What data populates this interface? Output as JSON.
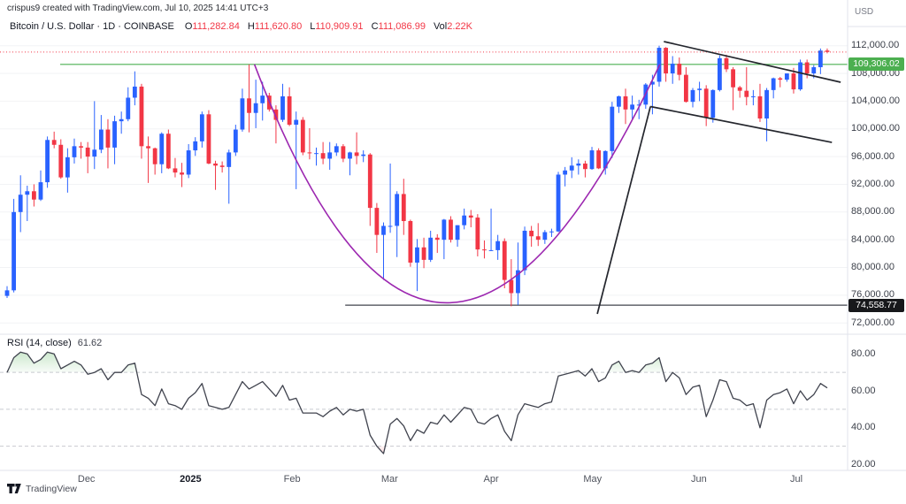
{
  "watermark": "crispus9 created with TradingView.com, Jul 10, 2025 14:41 UTC+3",
  "legend": {
    "title": "Bitcoin / U.S. Dollar · 1D · COINBASE",
    "o_label": "O",
    "o": "111,282.84",
    "h_label": "H",
    "h": "111,620.80",
    "l_label": "L",
    "l": "110,909.91",
    "c_label": "C",
    "c": "111,086.99",
    "vol_label": "Vol",
    "vol": "2.22K"
  },
  "rsi_legend": {
    "title": "RSI (14, close)",
    "value": "61.62"
  },
  "price_scale": {
    "unit": "USD",
    "ticks": [
      {
        "value": 112000,
        "label": "112,000.00"
      },
      {
        "value": 108000,
        "label": "108,000.00"
      },
      {
        "value": 104000,
        "label": "104,000.00"
      },
      {
        "value": 100000,
        "label": "100,000.00"
      },
      {
        "value": 96000,
        "label": "96,000.00"
      },
      {
        "value": 92000,
        "label": "92,000.00"
      },
      {
        "value": 88000,
        "label": "88,000.00"
      },
      {
        "value": 84000,
        "label": "84,000.00"
      },
      {
        "value": 80000,
        "label": "80,000.00"
      },
      {
        "value": 76000,
        "label": "76,000.00"
      },
      {
        "value": 72000,
        "label": "72,000.00"
      }
    ],
    "green_label": {
      "price": 109306.02,
      "label": "109,306.02",
      "color": "#4caf50"
    },
    "black_label": {
      "price": 74558.77,
      "label": "74,558.77",
      "color": "#17181b"
    }
  },
  "rsi_scale": {
    "ticks": [
      {
        "value": 80,
        "label": "80.00"
      },
      {
        "value": 60,
        "label": "60.00"
      },
      {
        "value": 40,
        "label": "40.00"
      },
      {
        "value": 20,
        "label": "20.00"
      }
    ]
  },
  "time_scale": {
    "ticks": [
      {
        "label": "Dec",
        "index": 11.8
      },
      {
        "label": "2025",
        "index": 27.3,
        "bold": true
      },
      {
        "label": "Feb",
        "index": 42.4
      },
      {
        "label": "Mar",
        "index": 56.9
      },
      {
        "label": "Apr",
        "index": 72.0
      },
      {
        "label": "May",
        "index": 87.1
      },
      {
        "label": "Jun",
        "index": 102.9
      },
      {
        "label": "Jul",
        "index": 117.4
      }
    ]
  },
  "branding": {
    "name": "TradingView"
  },
  "colors": {
    "up": "#2962ff",
    "down": "#f23645",
    "current_price_line": "#f23645",
    "green_line": "#4caf50",
    "support_line": "#40444d",
    "cup": "#9c27b0",
    "trend": "#24262d",
    "rsi_line": "#40434e",
    "rsi_band": "#b7bac1",
    "overbought_fill": "#4caf50",
    "oversold_fill": "#f23645"
  },
  "chart_data": {
    "type": "candlestick",
    "symbol": "Bitcoin / U.S. Dollar",
    "interval": "1D",
    "exchange": "COINBASE",
    "current_bar": {
      "open": 111282.84,
      "high": 111620.8,
      "low": 110909.91,
      "close": 111086.99,
      "volume": "2.22K"
    },
    "date_range": "Nov 2024 – Jul 10 2025",
    "price_axis_range": [
      70400,
      113500
    ],
    "candles_ohlc": [
      [
        75900,
        77300,
        75600,
        76700
      ],
      [
        76700,
        89900,
        76400,
        88000
      ],
      [
        88000,
        93300,
        85100,
        90500
      ],
      [
        90500,
        91800,
        86700,
        91000
      ],
      [
        91000,
        92000,
        88800,
        89800
      ],
      [
        89800,
        94000,
        89600,
        92300
      ],
      [
        92300,
        98900,
        91500,
        98400
      ],
      [
        98400,
        99600,
        97200,
        97700
      ],
      [
        97700,
        98500,
        92800,
        93000
      ],
      [
        93000,
        97200,
        90800,
        95900
      ],
      [
        95900,
        98600,
        95000,
        97500
      ],
      [
        97500,
        98100,
        95700,
        97300
      ],
      [
        97300,
        98100,
        93600,
        96000
      ],
      [
        96000,
        104000,
        94200,
        97000
      ],
      [
        97000,
        102000,
        96500,
        99900
      ],
      [
        99900,
        101400,
        94300,
        97300
      ],
      [
        97300,
        101900,
        94900,
        101100
      ],
      [
        101100,
        102500,
        99300,
        101400
      ],
      [
        101400,
        106000,
        101100,
        104500
      ],
      [
        104500,
        108300,
        103400,
        106100
      ],
      [
        106100,
        106500,
        95700,
        97500
      ],
      [
        97500,
        98900,
        92200,
        97200
      ],
      [
        97200,
        97300,
        93400,
        94900
      ],
      [
        94900,
        99500,
        93600,
        99300
      ],
      [
        99300,
        99900,
        94200,
        94300
      ],
      [
        94300,
        95800,
        93000,
        93700
      ],
      [
        93700,
        95100,
        91600,
        93400
      ],
      [
        93400,
        97800,
        92900,
        96900
      ],
      [
        96900,
        98800,
        96100,
        98200
      ],
      [
        98200,
        102500,
        97300,
        102100
      ],
      [
        102100,
        102700,
        94900,
        95000
      ],
      [
        95000,
        95400,
        91200,
        94700
      ],
      [
        94700,
        95300,
        93700,
        94500
      ],
      [
        94500,
        97000,
        89200,
        96600
      ],
      [
        96600,
        100600,
        96100,
        99900
      ],
      [
        99900,
        105800,
        99600,
        104400
      ],
      [
        104400,
        109300,
        99500,
        102300
      ],
      [
        102300,
        107100,
        100100,
        103700
      ],
      [
        103700,
        106800,
        101200,
        104800
      ],
      [
        104800,
        105200,
        102500,
        102800
      ],
      [
        102800,
        103400,
        97900,
        101300
      ],
      [
        101300,
        106500,
        101000,
        104700
      ],
      [
        104700,
        106000,
        100400,
        100600
      ],
      [
        100600,
        102500,
        91300,
        101300
      ],
      [
        101300,
        101700,
        96200,
        96600
      ],
      [
        96600,
        100100,
        95600,
        96500
      ],
      [
        96500,
        97300,
        94700,
        96500
      ],
      [
        96500,
        98100,
        94900,
        95700
      ],
      [
        95700,
        98100,
        94100,
        96600
      ],
      [
        96600,
        97900,
        96100,
        97500
      ],
      [
        97500,
        97800,
        95200,
        95700
      ],
      [
        95700,
        96700,
        93300,
        96600
      ],
      [
        96600,
        99500,
        94900,
        96100
      ],
      [
        96100,
        96900,
        95200,
        96300
      ],
      [
        96300,
        96500,
        86000,
        88600
      ],
      [
        88600,
        89300,
        82100,
        84700
      ],
      [
        84700,
        86500,
        78200,
        86000
      ],
      [
        86000,
        95000,
        85000,
        86000
      ],
      [
        86000,
        91000,
        81500,
        90600
      ],
      [
        90600,
        92800,
        84700,
        86700
      ],
      [
        86700,
        86900,
        80100,
        80700
      ],
      [
        80700,
        84100,
        76600,
        82900
      ],
      [
        82900,
        84300,
        79900,
        81100
      ],
      [
        81100,
        85300,
        80800,
        84300
      ],
      [
        84300,
        84800,
        82100,
        84000
      ],
      [
        84000,
        87000,
        81200,
        86900
      ],
      [
        86900,
        87400,
        83600,
        84000
      ],
      [
        84000,
        86100,
        83000,
        86100
      ],
      [
        86100,
        88500,
        85500,
        87500
      ],
      [
        87500,
        88300,
        85800,
        87200
      ],
      [
        87200,
        87700,
        81600,
        82600
      ],
      [
        82600,
        83900,
        81300,
        82500
      ],
      [
        82500,
        88500,
        82400,
        82500
      ],
      [
        82500,
        84700,
        81100,
        83800
      ],
      [
        83800,
        84200,
        77000,
        78200
      ],
      [
        78200,
        81200,
        74400,
        76300
      ],
      [
        76300,
        83600,
        74600,
        79600
      ],
      [
        79600,
        85900,
        78900,
        85300
      ],
      [
        85300,
        86000,
        83000,
        84500
      ],
      [
        84500,
        86400,
        83100,
        84000
      ],
      [
        84000,
        85400,
        83400,
        85100
      ],
      [
        85100,
        85600,
        84400,
        85200
      ],
      [
        85200,
        93800,
        85100,
        93400
      ],
      [
        93400,
        94500,
        91700,
        94000
      ],
      [
        94000,
        95900,
        92900,
        94700
      ],
      [
        94700,
        95600,
        93400,
        95000
      ],
      [
        95000,
        95400,
        93000,
        94200
      ],
      [
        94200,
        97400,
        94100,
        96900
      ],
      [
        96900,
        97200,
        94200,
        94300
      ],
      [
        94300,
        96900,
        93400,
        96800
      ],
      [
        96800,
        103900,
        95800,
        103200
      ],
      [
        103200,
        104800,
        102300,
        104700
      ],
      [
        104700,
        105800,
        100700,
        102800
      ],
      [
        102800,
        104800,
        101400,
        103500
      ],
      [
        103500,
        104200,
        101400,
        103500
      ],
      [
        103500,
        106600,
        102900,
        106400
      ],
      [
        106400,
        107800,
        102100,
        106800
      ],
      [
        106800,
        112000,
        106100,
        111700
      ],
      [
        111700,
        111800,
        106800,
        108000
      ],
      [
        108000,
        110500,
        106500,
        109400
      ],
      [
        109400,
        110300,
        107000,
        107800
      ],
      [
        107800,
        108900,
        103800,
        103900
      ],
      [
        103900,
        105900,
        103100,
        105600
      ],
      [
        105600,
        106800,
        104000,
        105800
      ],
      [
        105800,
        106300,
        100400,
        101600
      ],
      [
        101600,
        105700,
        100900,
        105600
      ],
      [
        105600,
        110600,
        105400,
        110200
      ],
      [
        110200,
        110700,
        108200,
        108600
      ],
      [
        108600,
        108900,
        102700,
        106000
      ],
      [
        106000,
        106200,
        104500,
        105500
      ],
      [
        105500,
        108900,
        103400,
        104600
      ],
      [
        104600,
        105600,
        103400,
        104700
      ],
      [
        104700,
        106500,
        101000,
        101500
      ],
      [
        101500,
        105900,
        98200,
        105600
      ],
      [
        105600,
        107400,
        104400,
        107300
      ],
      [
        107300,
        107500,
        106000,
        107100
      ],
      [
        107100,
        108000,
        106800,
        108000
      ],
      [
        108000,
        108800,
        105100,
        105700
      ],
      [
        105700,
        110000,
        105500,
        109600
      ],
      [
        109600,
        110000,
        107300,
        108000
      ],
      [
        108000,
        109200,
        107300,
        108900
      ],
      [
        108900,
        111600,
        107900,
        111300
      ],
      [
        111300,
        111600,
        110900,
        111100
      ]
    ],
    "indicator": {
      "type": "line",
      "name": "RSI",
      "params": "14, close",
      "current": 61.62,
      "range": [
        17,
        91
      ],
      "overbought": 70,
      "midline": 50,
      "oversold": 30,
      "values": [
        70,
        78,
        81,
        80,
        75,
        77,
        81,
        80,
        72,
        74,
        76,
        74,
        69,
        70,
        72,
        66,
        70,
        70,
        74,
        75,
        58,
        56,
        52,
        61,
        53,
        52,
        50,
        56,
        59,
        64,
        52,
        51,
        50,
        51,
        58,
        65,
        61,
        63,
        65,
        61,
        57,
        63,
        55,
        56,
        48,
        48,
        48,
        46,
        49,
        51,
        47,
        50,
        49,
        50,
        36,
        30,
        26,
        42,
        45,
        41,
        33,
        39,
        37,
        43,
        42,
        47,
        43,
        47,
        51,
        50,
        43,
        42,
        45,
        47,
        38,
        33,
        47,
        53,
        52,
        51,
        53,
        54,
        68,
        69,
        70,
        71,
        68,
        72,
        65,
        67,
        74,
        76,
        70,
        71,
        70,
        74,
        75,
        78,
        65,
        70,
        67,
        58,
        62,
        63,
        46,
        55,
        66,
        65,
        56,
        55,
        52,
        53,
        40,
        55,
        58,
        59,
        61,
        53,
        60,
        55,
        58,
        64,
        61.62
      ]
    },
    "annotations": {
      "current_price_line": {
        "price": 111086.99,
        "style": "dotted"
      },
      "horizontal_lines": [
        {
          "name": "resistance",
          "price": 109306.02,
          "from_index": 7.9
        },
        {
          "name": "support",
          "price": 74558.77,
          "from_index": 50.3
        }
      ],
      "cup_curve": {
        "from_index": 36.8,
        "to_index": 97.1,
        "rim_price": 109306,
        "bottom_price": 74900,
        "bottom_index": 65.4
      },
      "trend_lines": [
        {
          "name": "steep-rally-line",
          "from": [
            87.8,
            73300
          ],
          "to": [
            95.7,
            103222
          ]
        },
        {
          "name": "flag-lower",
          "from": [
            95.7,
            103222
          ],
          "to": [
            122.7,
            98050
          ]
        },
        {
          "name": "flag-upper",
          "from": [
            97.7,
            112600
          ],
          "to": [
            124.0,
            106730
          ]
        }
      ]
    }
  }
}
